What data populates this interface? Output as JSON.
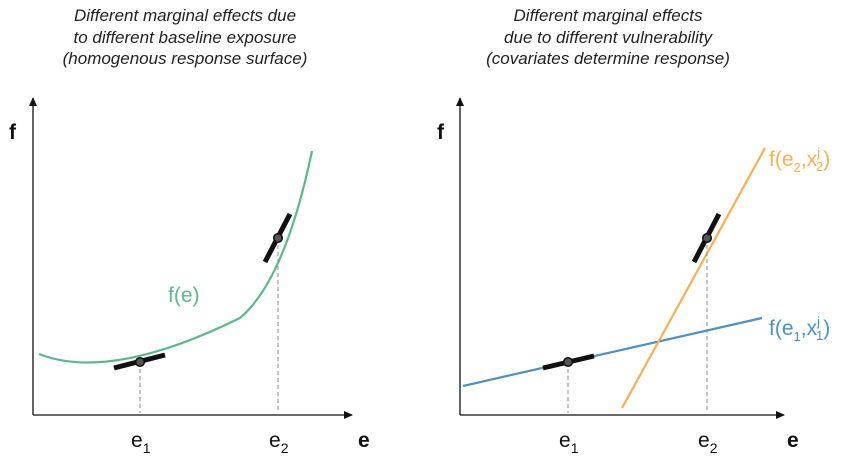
{
  "left_panel": {
    "caption": [
      "Different marginal effects due",
      "to different baseline exposure",
      "(homogenous response surface)"
    ],
    "y_axis_label": "f",
    "x_axis_label": "e",
    "x_tick_1": {
      "base": "e",
      "sub": "1"
    },
    "x_tick_2": {
      "base": "e",
      "sub": "2"
    },
    "curve_label": "f(e)",
    "curve_color": "#5cb88a"
  },
  "right_panel": {
    "caption": [
      "Different marginal effects",
      "due to different vulnerability",
      "(covariates determine response)"
    ],
    "y_axis_label": "f",
    "x_axis_label": "e",
    "x_tick_1": {
      "base": "e",
      "sub": "1"
    },
    "x_tick_2": {
      "base": "e",
      "sub": "2"
    },
    "line_orange": {
      "prefix": "f(e",
      "sub1": "2",
      "mid": ",x",
      "sup": "j",
      "sub2": "2",
      "suffix": ")",
      "color": "#f5b050"
    },
    "line_blue": {
      "prefix": "f(e",
      "sub1": "1",
      "mid": ",x",
      "sup": "j",
      "sub2": "1",
      "suffix": ")",
      "color": "#4d90c6"
    }
  }
}
